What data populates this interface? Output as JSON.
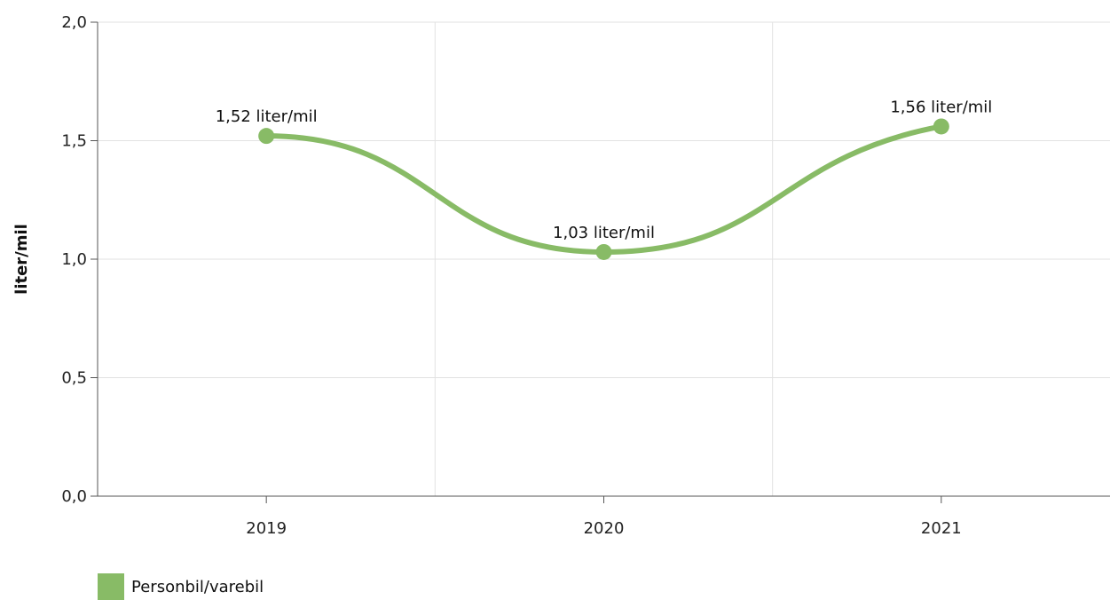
{
  "chart_data": {
    "type": "line",
    "categories": [
      "2019",
      "2020",
      "2021"
    ],
    "series": [
      {
        "name": "Personbil/varebil",
        "values": [
          1.52,
          1.03,
          1.56
        ],
        "labels": [
          "1,52 liter/mil",
          "1,03 liter/mil",
          "1,56 liter/mil"
        ],
        "color": "#88bb66"
      }
    ],
    "ylabel": "liter/mil",
    "xlabel": "",
    "ylim": [
      0,
      2.0
    ],
    "yticks": [
      0,
      0.5,
      1.0,
      1.5,
      2.0
    ],
    "ytick_labels": [
      "0,0",
      "0,5",
      "1,0",
      "1,5",
      "2,0"
    ],
    "grid": true,
    "smooth": true,
    "legend_position": "bottom-left"
  }
}
